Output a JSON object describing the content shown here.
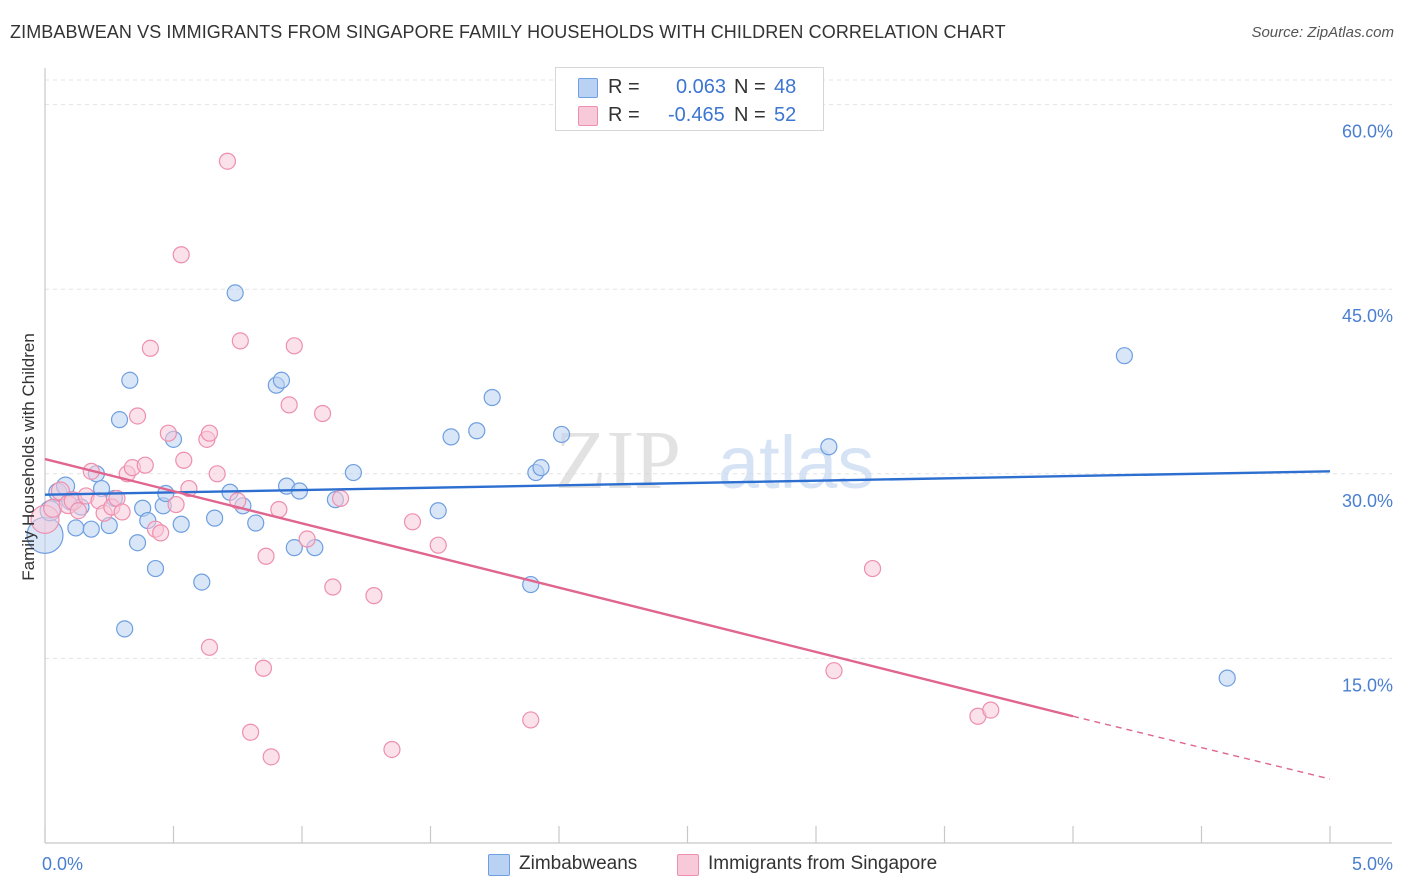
{
  "header": {
    "title": "ZIMBABWEAN VS IMMIGRANTS FROM SINGAPORE FAMILY HOUSEHOLDS WITH CHILDREN CORRELATION CHART",
    "source": "Source: ZipAtlas.com"
  },
  "watermark": {
    "zip": "ZIP",
    "atlas": "atlas"
  },
  "legend": {
    "rows": [
      {
        "r_label": "R =",
        "r_value": "0.063",
        "n_label": "N =",
        "n_value": "48"
      },
      {
        "r_label": "R =",
        "r_value": "-0.465",
        "n_label": "N =",
        "n_value": "52"
      }
    ]
  },
  "bottom_legend": {
    "items": [
      "Zimbabweans",
      "Immigrants from Singapore"
    ]
  },
  "chart_data": {
    "type": "scatter",
    "ylabel": "Family Households with Children",
    "xlim": [
      0,
      5.0
    ],
    "ylim": [
      0,
      62
    ],
    "y_ticks": [
      {
        "value": 15,
        "label": "15.0%"
      },
      {
        "value": 30,
        "label": "30.0%"
      },
      {
        "value": 45,
        "label": "45.0%"
      },
      {
        "value": 60,
        "label": "60.0%"
      }
    ],
    "x_tick_labels": [
      {
        "value": 0,
        "label": "0.0%"
      },
      {
        "value": 5.0,
        "label": "5.0%"
      }
    ],
    "grid": true,
    "series": [
      {
        "name": "Zimbabweans",
        "color": "#6f9fe0",
        "fill": "#b9d2f3",
        "trend": {
          "x": [
            0,
            5.0
          ],
          "y": [
            28.3,
            30.2
          ],
          "color": "#2d6fd0"
        },
        "points": [
          [
            0.0,
            25.0,
            18
          ],
          [
            0.02,
            27.0,
            10
          ],
          [
            0.05,
            28.5,
            9
          ],
          [
            0.08,
            29.0,
            9
          ],
          [
            0.1,
            27.8,
            9
          ],
          [
            0.12,
            25.6,
            8
          ],
          [
            0.14,
            27.3,
            8
          ],
          [
            0.18,
            25.5,
            8
          ],
          [
            0.2,
            30.0,
            8
          ],
          [
            0.22,
            28.8,
            8
          ],
          [
            0.25,
            25.8,
            8
          ],
          [
            0.27,
            28.0,
            8
          ],
          [
            0.29,
            34.4,
            8
          ],
          [
            0.31,
            17.4,
            8
          ],
          [
            0.33,
            37.6,
            8
          ],
          [
            0.36,
            24.4,
            8
          ],
          [
            0.38,
            27.2,
            8
          ],
          [
            0.4,
            26.2,
            8
          ],
          [
            0.43,
            22.3,
            8
          ],
          [
            0.46,
            27.4,
            8
          ],
          [
            0.47,
            28.4,
            8
          ],
          [
            0.5,
            32.8,
            8
          ],
          [
            0.53,
            25.9,
            8
          ],
          [
            0.61,
            21.2,
            8
          ],
          [
            0.66,
            26.4,
            8
          ],
          [
            0.72,
            28.5,
            8
          ],
          [
            0.74,
            44.7,
            8
          ],
          [
            0.77,
            27.4,
            8
          ],
          [
            0.82,
            26.0,
            8
          ],
          [
            0.9,
            37.2,
            8
          ],
          [
            0.92,
            37.6,
            8
          ],
          [
            0.94,
            29.0,
            8
          ],
          [
            0.97,
            24.0,
            8
          ],
          [
            0.99,
            28.6,
            8
          ],
          [
            1.05,
            24.0,
            8
          ],
          [
            1.13,
            27.9,
            8
          ],
          [
            1.2,
            30.1,
            8
          ],
          [
            1.53,
            27.0,
            8
          ],
          [
            1.58,
            33.0,
            8
          ],
          [
            1.68,
            33.5,
            8
          ],
          [
            1.74,
            36.2,
            8
          ],
          [
            1.91,
            30.1,
            8
          ],
          [
            1.93,
            30.5,
            8
          ],
          [
            1.89,
            21.0,
            8
          ],
          [
            2.01,
            33.2,
            8
          ],
          [
            3.05,
            32.2,
            8
          ],
          [
            4.2,
            39.6,
            8
          ],
          [
            4.6,
            13.4,
            8
          ]
        ]
      },
      {
        "name": "Immigrants from Singapore",
        "color": "#ee8fae",
        "fill": "#f8c9d8",
        "trend": {
          "x": [
            0,
            4.0
          ],
          "y": [
            31.2,
            10.3
          ],
          "dash_x": [
            4.0,
            5.0
          ],
          "dash_y": [
            10.3,
            5.2
          ],
          "color": "#e0658f"
        },
        "points": [
          [
            0.0,
            26.3,
            14
          ],
          [
            0.03,
            27.2,
            9
          ],
          [
            0.06,
            28.6,
            9
          ],
          [
            0.09,
            27.5,
            9
          ],
          [
            0.11,
            27.8,
            9
          ],
          [
            0.13,
            27.0,
            8
          ],
          [
            0.16,
            28.2,
            8
          ],
          [
            0.18,
            30.2,
            8
          ],
          [
            0.21,
            27.8,
            8
          ],
          [
            0.23,
            26.8,
            8
          ],
          [
            0.26,
            27.3,
            8
          ],
          [
            0.28,
            28.0,
            8
          ],
          [
            0.3,
            26.9,
            8
          ],
          [
            0.32,
            30.0,
            8
          ],
          [
            0.34,
            30.5,
            8
          ],
          [
            0.36,
            34.7,
            8
          ],
          [
            0.39,
            30.7,
            8
          ],
          [
            0.41,
            40.2,
            8
          ],
          [
            0.43,
            25.5,
            8
          ],
          [
            0.45,
            25.2,
            8
          ],
          [
            0.48,
            33.3,
            8
          ],
          [
            0.51,
            27.5,
            8
          ],
          [
            0.53,
            47.8,
            8
          ],
          [
            0.54,
            31.1,
            8
          ],
          [
            0.56,
            28.8,
            8
          ],
          [
            0.63,
            32.8,
            8
          ],
          [
            0.64,
            33.3,
            8
          ],
          [
            0.67,
            30.0,
            8
          ],
          [
            0.71,
            55.4,
            8
          ],
          [
            0.76,
            40.8,
            8
          ],
          [
            0.64,
            15.9,
            8
          ],
          [
            0.8,
            9.0,
            8
          ],
          [
            0.85,
            14.2,
            8
          ],
          [
            0.86,
            23.3,
            8
          ],
          [
            0.88,
            7.0,
            8
          ],
          [
            0.91,
            27.1,
            8
          ],
          [
            0.95,
            35.6,
            8
          ],
          [
            0.97,
            40.4,
            8
          ],
          [
            1.02,
            24.7,
            8
          ],
          [
            1.08,
            34.9,
            8
          ],
          [
            1.12,
            20.8,
            8
          ],
          [
            1.15,
            28.0,
            8
          ],
          [
            1.28,
            20.1,
            8
          ],
          [
            1.35,
            7.6,
            8
          ],
          [
            1.43,
            26.1,
            8
          ],
          [
            1.53,
            24.2,
            8
          ],
          [
            1.89,
            10.0,
            8
          ],
          [
            3.07,
            14.0,
            8
          ],
          [
            3.22,
            22.3,
            8
          ],
          [
            3.63,
            10.3,
            8
          ],
          [
            3.68,
            10.8,
            8
          ],
          [
            0.75,
            27.8,
            8
          ]
        ]
      }
    ]
  }
}
